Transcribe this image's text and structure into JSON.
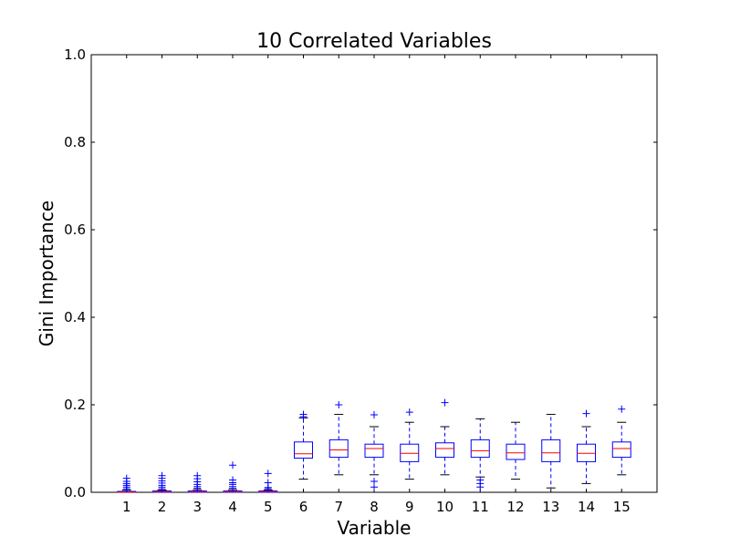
{
  "chart_data": {
    "type": "box",
    "title": "10 Correlated Variables",
    "xlabel": "Variable",
    "ylabel": "Gini Importance",
    "ylim": [
      0.0,
      1.0
    ],
    "yticks": [
      "0.0",
      "0.2",
      "0.4",
      "0.6",
      "0.8",
      "1.0"
    ],
    "grid": false,
    "categories": [
      "1",
      "2",
      "3",
      "4",
      "5",
      "6",
      "7",
      "8",
      "9",
      "10",
      "11",
      "12",
      "13",
      "14",
      "15"
    ],
    "boxes": [
      {
        "whislo": 0.0,
        "q1": 0.0,
        "med": 0.0,
        "q3": 0.002,
        "whishi": 0.005,
        "fliers": [
          0.008,
          0.012,
          0.016,
          0.02,
          0.025,
          0.032
        ]
      },
      {
        "whislo": 0.0,
        "q1": 0.0,
        "med": 0.001,
        "q3": 0.003,
        "whishi": 0.005,
        "fliers": [
          0.008,
          0.012,
          0.016,
          0.021,
          0.026,
          0.032,
          0.038
        ]
      },
      {
        "whislo": 0.0,
        "q1": 0.0,
        "med": 0.001,
        "q3": 0.003,
        "whishi": 0.006,
        "fliers": [
          0.009,
          0.013,
          0.018,
          0.024,
          0.031,
          0.038
        ]
      },
      {
        "whislo": 0.0,
        "q1": 0.0,
        "med": 0.001,
        "q3": 0.003,
        "whishi": 0.006,
        "fliers": [
          0.009,
          0.013,
          0.018,
          0.022,
          0.028,
          0.062
        ]
      },
      {
        "whislo": 0.0,
        "q1": 0.0,
        "med": 0.001,
        "q3": 0.003,
        "whishi": 0.005,
        "fliers": [
          0.008,
          0.011,
          0.022,
          0.043
        ]
      },
      {
        "whislo": 0.03,
        "q1": 0.078,
        "med": 0.088,
        "q3": 0.115,
        "whishi": 0.17,
        "fliers": [
          0.173,
          0.178
        ]
      },
      {
        "whislo": 0.04,
        "q1": 0.08,
        "med": 0.097,
        "q3": 0.12,
        "whishi": 0.178,
        "fliers": [
          0.2
        ]
      },
      {
        "whislo": 0.04,
        "q1": 0.08,
        "med": 0.1,
        "q3": 0.11,
        "whishi": 0.15,
        "fliers": [
          0.012,
          0.025,
          0.177
        ]
      },
      {
        "whislo": 0.03,
        "q1": 0.07,
        "med": 0.089,
        "q3": 0.11,
        "whishi": 0.16,
        "fliers": [
          0.183
        ]
      },
      {
        "whislo": 0.04,
        "q1": 0.08,
        "med": 0.1,
        "q3": 0.113,
        "whishi": 0.15,
        "fliers": [
          0.205
        ]
      },
      {
        "whislo": 0.035,
        "q1": 0.08,
        "med": 0.095,
        "q3": 0.12,
        "whishi": 0.168,
        "fliers": [
          0.012,
          0.02,
          0.028
        ]
      },
      {
        "whislo": 0.03,
        "q1": 0.075,
        "med": 0.09,
        "q3": 0.11,
        "whishi": 0.16,
        "fliers": []
      },
      {
        "whislo": 0.01,
        "q1": 0.07,
        "med": 0.09,
        "q3": 0.12,
        "whishi": 0.178,
        "fliers": []
      },
      {
        "whislo": 0.02,
        "q1": 0.07,
        "med": 0.089,
        "q3": 0.11,
        "whishi": 0.15,
        "fliers": [
          0.18
        ]
      },
      {
        "whislo": 0.04,
        "q1": 0.08,
        "med": 0.1,
        "q3": 0.115,
        "whishi": 0.16,
        "fliers": [
          0.19
        ]
      }
    ],
    "colors": {
      "box": "#0000ff",
      "median": "#ff0000",
      "axis": "#000000"
    }
  }
}
